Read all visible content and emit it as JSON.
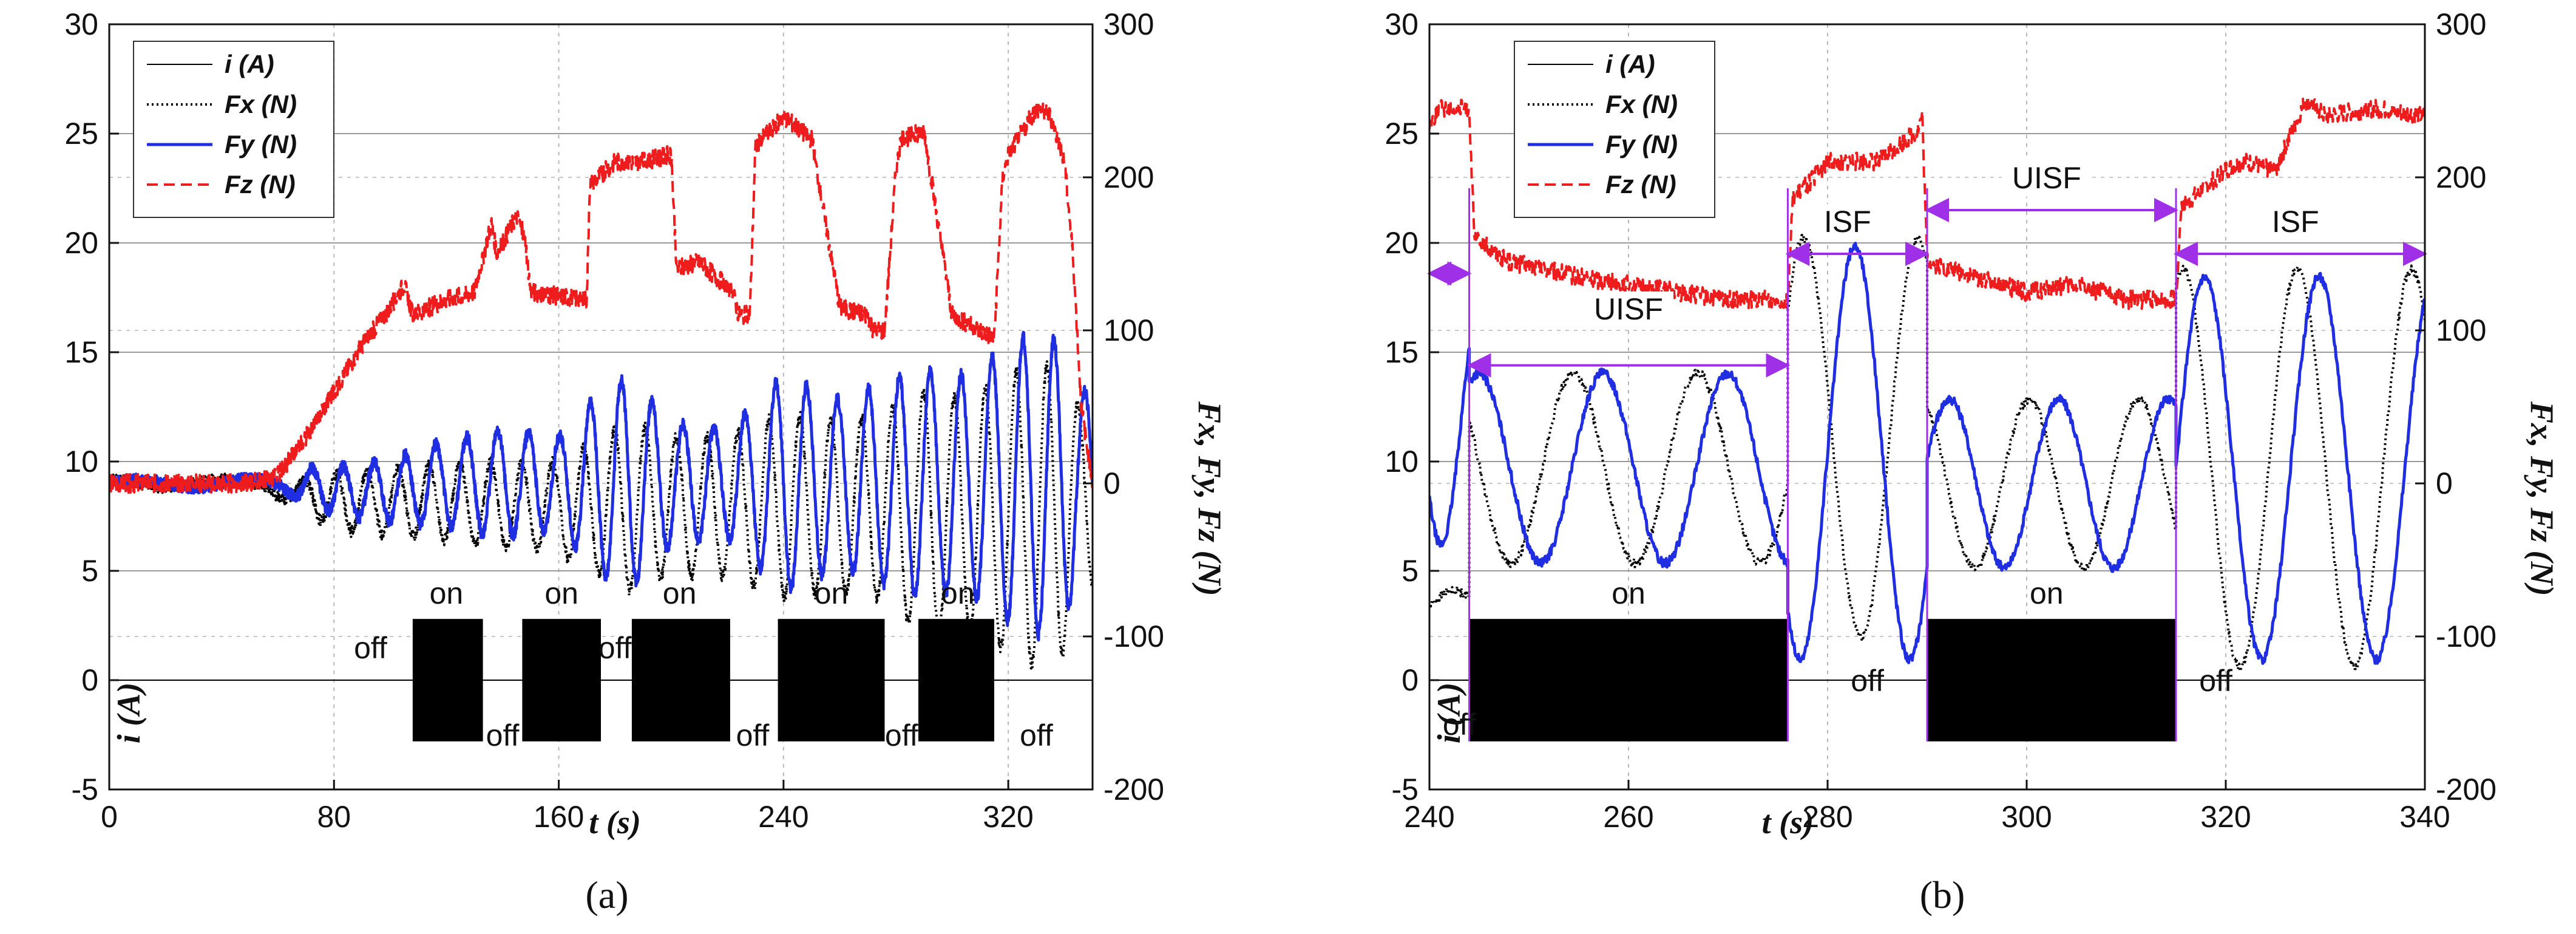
{
  "chart_data": [
    {
      "panel": "a",
      "type": "line",
      "xlabel": "t (s)",
      "ylabel": "i (A)",
      "y2label": "Fx, Fy, Fz (N)",
      "xlim": [
        0,
        350
      ],
      "xticks": [
        0,
        80,
        160,
        240,
        320
      ],
      "ylim": [
        -5,
        30
      ],
      "yticks": [
        -5,
        0,
        5,
        10,
        15,
        20,
        25,
        30
      ],
      "y2lim": [
        -200,
        300
      ],
      "y2ticks": [
        -200,
        -100,
        0,
        100,
        200,
        300
      ],
      "grid": true,
      "legend": "top-left",
      "series": [
        {
          "name": "i (A)",
          "axis": "left",
          "color": "#000000",
          "style": "solid",
          "on_intervals": [
            [
              108,
              133
            ],
            [
              147,
              175
            ],
            [
              186,
              221
            ],
            [
              238,
              276
            ],
            [
              288,
              315
            ]
          ],
          "on_range": [
            -2.8,
            2.8
          ],
          "off_value": 0
        },
        {
          "name": "Fx (N)",
          "axis": "right",
          "color": "#000000",
          "style": "dotted",
          "x": [
            0,
            55,
            70,
            80,
            100,
            120,
            140,
            160,
            175,
            185,
            200,
            220,
            240,
            260,
            275,
            290,
            305,
            320,
            330,
            340,
            345
          ],
          "amplitude": [
            2,
            3,
            10,
            18,
            22,
            25,
            28,
            30,
            45,
            55,
            45,
            45,
            60,
            55,
            60,
            80,
            75,
            90,
            100,
            90,
            60
          ],
          "center": [
            0,
            0,
            -8,
            -12,
            -12,
            -12,
            -15,
            -15,
            -15,
            -15,
            -15,
            -15,
            -15,
            -15,
            -15,
            -20,
            -20,
            -20,
            -20,
            -20,
            -10
          ],
          "period": [
            40,
            40,
            11,
            11,
            11,
            11,
            11,
            11,
            11,
            11,
            11,
            11,
            11,
            11,
            11,
            11,
            11,
            11,
            11,
            11,
            11
          ]
        },
        {
          "name": "Fy (N)",
          "axis": "right",
          "color": "#1f2ee0",
          "style": "solid",
          "x": [
            0,
            55,
            70,
            80,
            100,
            120,
            140,
            160,
            175,
            185,
            200,
            220,
            240,
            260,
            275,
            290,
            305,
            320,
            330,
            340,
            345
          ],
          "amplitude": [
            2,
            3,
            10,
            15,
            20,
            28,
            35,
            30,
            60,
            70,
            40,
            35,
            70,
            55,
            65,
            75,
            70,
            90,
            100,
            90,
            60
          ],
          "center": [
            0,
            0,
            0,
            -5,
            -5,
            0,
            0,
            0,
            0,
            0,
            0,
            0,
            0,
            0,
            0,
            0,
            0,
            0,
            0,
            0,
            0
          ],
          "period": [
            40,
            40,
            11,
            11,
            11,
            11,
            11,
            11,
            11,
            11,
            11,
            11,
            11,
            11,
            11,
            11,
            11,
            11,
            11,
            11,
            11
          ]
        },
        {
          "name": "Fz (N)",
          "axis": "right",
          "color": "#ee1c1c",
          "style": "dashed",
          "x": [
            0,
            50,
            60,
            70,
            80,
            90,
            100,
            105,
            108,
            120,
            130,
            136,
            138,
            145,
            148,
            150,
            170,
            171,
            180,
            190,
            200,
            202,
            210,
            222,
            224,
            228,
            230,
            240,
            250,
            260,
            270,
            272,
            276,
            280,
            282,
            290,
            300,
            315,
            318,
            320,
            330,
            335,
            340,
            343,
            346,
            350
          ],
          "y": [
            0,
            0,
            5,
            30,
            60,
            90,
            115,
            130,
            110,
            120,
            125,
            170,
            150,
            175,
            160,
            125,
            120,
            195,
            210,
            210,
            215,
            140,
            145,
            125,
            110,
            110,
            220,
            240,
            225,
            115,
            110,
            100,
            100,
            205,
            225,
            230,
            110,
            95,
            200,
            215,
            245,
            240,
            210,
            150,
            50,
            0
          ]
        }
      ],
      "annotations": [
        {
          "text": "on",
          "x": 120,
          "y": 3.5
        },
        {
          "text": "on",
          "x": 161,
          "y": 3.5
        },
        {
          "text": "on",
          "x": 203,
          "y": 3.5
        },
        {
          "text": "on",
          "x": 257,
          "y": 3.5
        },
        {
          "text": "on",
          "x": 302,
          "y": 3.5
        },
        {
          "text": "off",
          "x": 93,
          "y": 1.0
        },
        {
          "text": "off",
          "x": 140,
          "y": -3.0
        },
        {
          "text": "off",
          "x": 180,
          "y": 1.0
        },
        {
          "text": "off",
          "x": 229,
          "y": -3.0
        },
        {
          "text": "off",
          "x": 282,
          "y": -3.0
        },
        {
          "text": "off",
          "x": 330,
          "y": -3.0
        }
      ],
      "panel_label": "(a)"
    },
    {
      "panel": "b",
      "type": "line",
      "xlabel": "t (s)",
      "ylabel": "i (A)",
      "y2label": "Fx, Fy, Fz (N)",
      "xlim": [
        240,
        340
      ],
      "xticks": [
        240,
        260,
        280,
        300,
        320,
        340
      ],
      "ylim": [
        -5,
        30
      ],
      "yticks": [
        -5,
        0,
        5,
        10,
        15,
        20,
        25,
        30
      ],
      "y2lim": [
        -200,
        300
      ],
      "y2ticks": [
        -200,
        -100,
        0,
        100,
        200,
        300
      ],
      "grid": true,
      "legend": "top-left",
      "series": [
        {
          "name": "i (A)",
          "axis": "left",
          "color": "#000000",
          "style": "solid",
          "on_intervals": [
            [
              244,
              276
            ],
            [
              290,
              315
            ]
          ],
          "on_range": [
            -2.8,
            2.8
          ],
          "off_value": 0
        },
        {
          "name": "Fx (N)",
          "axis": "right",
          "color": "#000000",
          "style": "dotted",
          "segments": [
            {
              "x0": 240,
              "x1": 244,
              "center": -80,
              "amplitude": 10,
              "period": 10,
              "phase": 0
            },
            {
              "x0": 244,
              "x1": 276,
              "center": 10,
              "amplitude": 62,
              "period": 12.5,
              "phase": 2.6
            },
            {
              "x0": 276,
              "x1": 290,
              "center": 30,
              "amplitude": 130,
              "period": 11.5,
              "phase": 0.7
            },
            {
              "x0": 290,
              "x1": 315,
              "center": 0,
              "amplitude": 55,
              "period": 11,
              "phase": 2.0
            },
            {
              "x0": 315,
              "x1": 340,
              "center": 10,
              "amplitude": 130,
              "period": 11.5,
              "phase": 1.2
            }
          ]
        },
        {
          "name": "Fy (N)",
          "axis": "right",
          "color": "#1f2ee0",
          "style": "solid",
          "segments": [
            {
              "x0": 240,
              "x1": 244,
              "center": 40,
              "amplitude": 80,
              "period": 8,
              "phase": 3.8
            },
            {
              "x0": 244,
              "x1": 276,
              "center": 10,
              "amplitude": 62,
              "period": 12.5,
              "phase": 1.1
            },
            {
              "x0": 276,
              "x1": 290,
              "center": 20,
              "amplitude": 135,
              "period": 11,
              "phase": 4.0
            },
            {
              "x0": 290,
              "x1": 315,
              "center": 0,
              "amplitude": 55,
              "period": 11,
              "phase": 0.3
            },
            {
              "x0": 315,
              "x1": 340,
              "center": 10,
              "amplitude": 125,
              "period": 11.5,
              "phase": 0.0
            }
          ]
        },
        {
          "name": "Fz (N)",
          "axis": "right",
          "color": "#ee1c1c",
          "style": "dashed",
          "x": [
            240,
            241,
            243,
            244,
            244.5,
            248,
            255,
            265,
            270,
            276,
            276.5,
            280,
            285,
            289,
            289.5,
            290,
            292,
            300,
            305,
            310,
            315,
            315.5,
            320,
            322,
            325,
            328,
            330,
            335,
            340
          ],
          "y": [
            235,
            245,
            245,
            245,
            160,
            145,
            135,
            125,
            120,
            120,
            185,
            210,
            210,
            230,
            240,
            145,
            140,
            125,
            130,
            120,
            120,
            180,
            205,
            210,
            205,
            250,
            240,
            245,
            240
          ]
        }
      ],
      "annotations": [
        {
          "text": "on",
          "x": 260,
          "y": 3.5
        },
        {
          "text": "on",
          "x": 302,
          "y": 3.5
        },
        {
          "text": "off",
          "x": 243,
          "y": -2.5
        },
        {
          "text": "off",
          "x": 284,
          "y": -0.5
        },
        {
          "text": "off",
          "x": 319,
          "y": -0.5
        },
        {
          "text": "UISF",
          "x": 260,
          "y": 16.5
        },
        {
          "text": "ISF",
          "x": 282,
          "y": 20.5
        },
        {
          "text": "UISF",
          "x": 302,
          "y": 22.5
        },
        {
          "text": "ISF",
          "x": 327,
          "y": 20.5
        }
      ],
      "arrows": [
        {
          "x0": 240,
          "x1": 244,
          "y": 18.6
        },
        {
          "x0": 244,
          "x1": 276,
          "y": 14.4
        },
        {
          "x0": 276,
          "x1": 290,
          "y": 19.5
        },
        {
          "x0": 290,
          "x1": 315,
          "y": 21.5
        },
        {
          "x0": 315,
          "x1": 340,
          "y": 19.5
        }
      ],
      "panel_label": "(b)"
    }
  ]
}
